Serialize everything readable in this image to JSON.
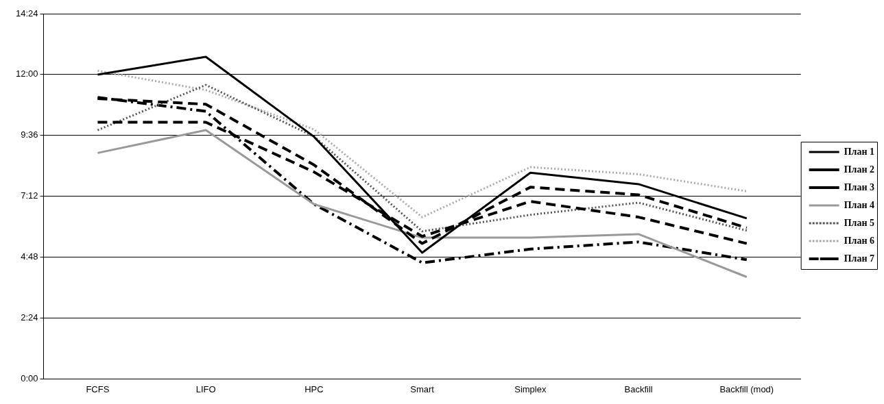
{
  "chart_data": {
    "type": "line",
    "categories": [
      "FCFS",
      "LIFO",
      "HPC",
      "Smart",
      "Simplex",
      "Backfill",
      "Backfill (mod)"
    ],
    "series": [
      {
        "name": "План 1",
        "color": "#000000",
        "line_style": "solid",
        "values": [
          12.0,
          12.7,
          9.55,
          4.98,
          8.13,
          7.68,
          6.33
        ]
      },
      {
        "name": "План 2",
        "color": "#000000",
        "line_style": "dashed",
        "values": [
          11.05,
          10.83,
          8.44,
          5.34,
          7.56,
          7.26,
          5.96
        ]
      },
      {
        "name": "План 3",
        "color": "#000000",
        "line_style": "dashed",
        "values": [
          10.12,
          10.12,
          8.16,
          5.62,
          7.0,
          6.38,
          5.34
        ]
      },
      {
        "name": "План 4",
        "color": "#999999",
        "line_style": "solid",
        "values": [
          8.91,
          9.81,
          6.89,
          5.57,
          5.57,
          5.71,
          4.02
        ]
      },
      {
        "name": "План 5",
        "color": "#555555",
        "line_style": "dotted",
        "values": [
          9.81,
          11.59,
          9.56,
          5.82,
          6.47,
          6.95,
          5.85
        ]
      },
      {
        "name": "План 6",
        "color": "#aaaaaa",
        "line_style": "dotted",
        "values": [
          12.15,
          11.39,
          9.84,
          6.38,
          8.35,
          8.07,
          7.4
        ]
      },
      {
        "name": "План 7",
        "color": "#000000",
        "line_style": "dashdot",
        "values": [
          11.1,
          10.55,
          6.89,
          4.58,
          5.12,
          5.4,
          4.7
        ]
      }
    ],
    "ylim": [
      0,
      14.4
    ],
    "yticks": [
      {
        "value": 0,
        "label": "0:00"
      },
      {
        "value": 2.4,
        "label": "2:24"
      },
      {
        "value": 4.8,
        "label": "4:48"
      },
      {
        "value": 7.2,
        "label": "7:12"
      },
      {
        "value": 9.6,
        "label": "9:36"
      },
      {
        "value": 12,
        "label": "12:00"
      },
      {
        "value": 14.4,
        "label": "14:24"
      }
    ],
    "grid": "y",
    "legend": "right",
    "marker": "none"
  }
}
